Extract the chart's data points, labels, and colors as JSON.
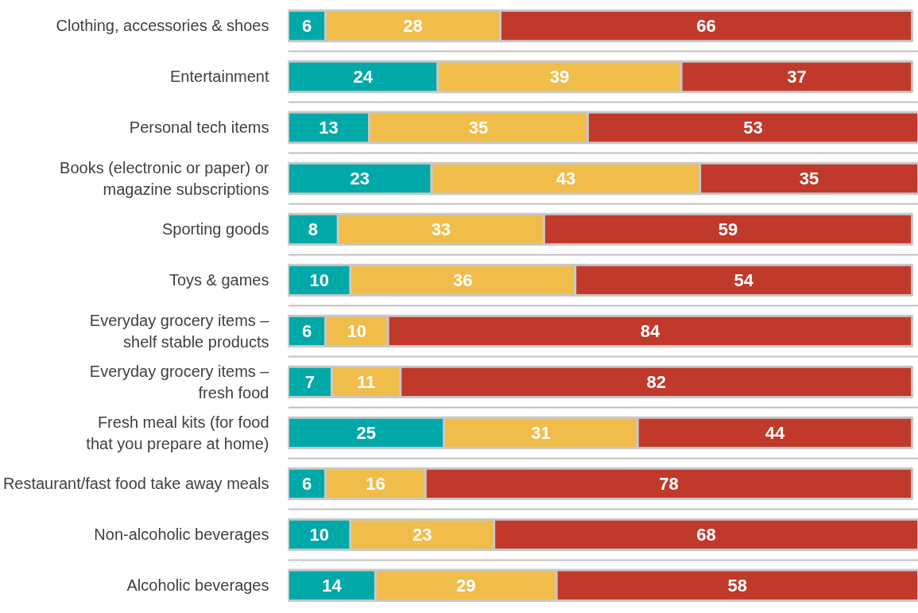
{
  "chart_data": {
    "type": "bar",
    "orientation": "horizontal",
    "stacked": true,
    "data_labels": true,
    "grid": "y",
    "tick_labels": "y",
    "xlim": [
      0,
      101
    ],
    "categories": [
      "Clothing, accessories & shoes",
      "Entertainment",
      "Personal tech items",
      "Books (electronic or paper) or\nmagazine subscriptions",
      "Sporting goods",
      "Toys & games",
      "Everyday grocery items –\nshelf stable products",
      "Everyday grocery items –\nfresh food",
      "Fresh meal kits (for food\nthat you prepare at home)",
      "Restaurant/fast food take away meals",
      "Non-alcoholic beverages",
      "Alcoholic beverages"
    ],
    "series": [
      {
        "color": "#00a9a8",
        "values": [
          6,
          24,
          13,
          23,
          8,
          10,
          6,
          7,
          25,
          6,
          10,
          14
        ]
      },
      {
        "color": "#f0bd4b",
        "values": [
          28,
          39,
          35,
          43,
          33,
          36,
          10,
          11,
          31,
          16,
          23,
          29
        ]
      },
      {
        "color": "#c0392b",
        "values": [
          66,
          37,
          53,
          35,
          59,
          54,
          84,
          82,
          44,
          78,
          68,
          58
        ]
      }
    ]
  }
}
